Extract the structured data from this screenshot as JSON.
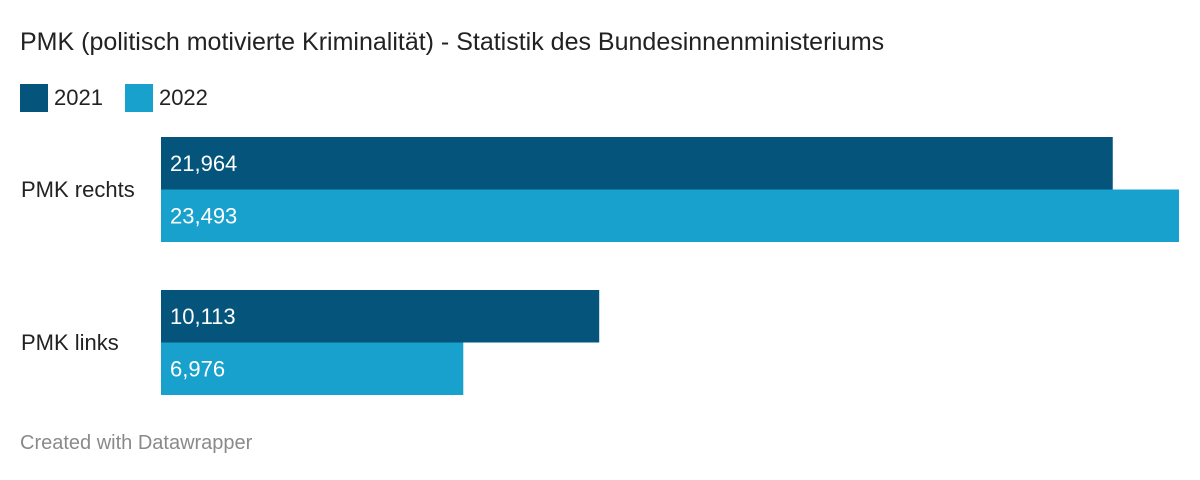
{
  "title": "PMK (politisch motivierte Kriminalität) - Statistik des Bundesinnenministeriums",
  "footer": "Created with Datawrapper",
  "colors": {
    "series_2021": "#04547c",
    "series_2022": "#18a1cd"
  },
  "chart_data": {
    "type": "bar",
    "orientation": "horizontal",
    "categories": [
      "PMK rechts",
      "PMK links"
    ],
    "series": [
      {
        "name": "2021",
        "values": [
          21964,
          10113
        ],
        "labels": [
          "21,964",
          "10,113"
        ]
      },
      {
        "name": "2022",
        "values": [
          23493,
          6976
        ],
        "labels": [
          "23,493",
          "6,976"
        ]
      }
    ],
    "xlim": [
      0,
      23493
    ],
    "grid": false,
    "legend": "top-left",
    "title": "PMK (politisch motivierte Kriminalität) - Statistik des Bundesinnenministeriums"
  }
}
